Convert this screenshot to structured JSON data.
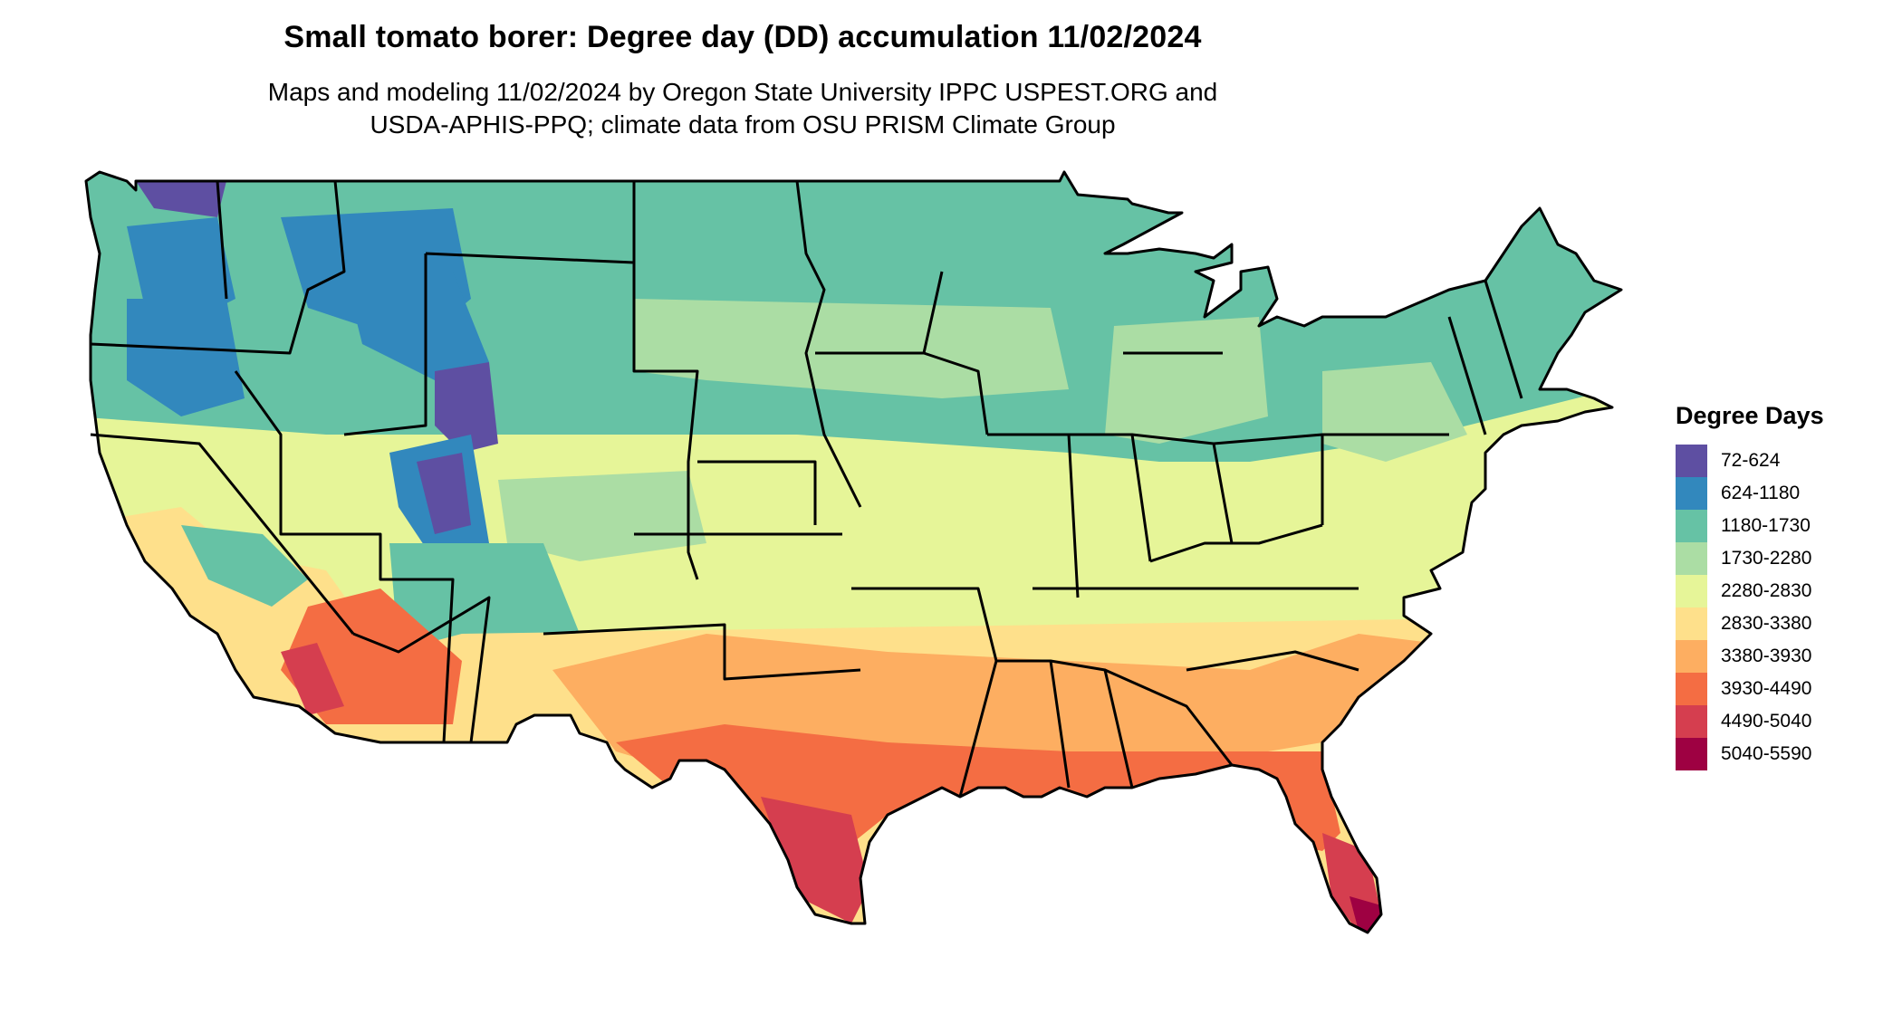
{
  "title": "Small tomato borer: Degree day (DD) accumulation 11/02/2024",
  "subtitle_line1": "Maps and modeling 11/02/2024 by Oregon State University IPPC USPEST.ORG and",
  "subtitle_line2": "USDA-APHIS-PPQ; climate data from OSU PRISM Climate Group",
  "legend": {
    "title": "Degree Days",
    "items": [
      {
        "label": "72-624",
        "color": "#5e4fa2"
      },
      {
        "label": "624-1180",
        "color": "#3288bd"
      },
      {
        "label": "1180-1730",
        "color": "#66c2a5"
      },
      {
        "label": "1730-2280",
        "color": "#abdda4"
      },
      {
        "label": "2280-2830",
        "color": "#e6f598"
      },
      {
        "label": "2830-3380",
        "color": "#fee08b"
      },
      {
        "label": "3380-3930",
        "color": "#fdae61"
      },
      {
        "label": "3930-4490",
        "color": "#f46d43"
      },
      {
        "label": "4490-5040",
        "color": "#d53e4f"
      },
      {
        "label": "5040-5590",
        "color": "#9e0142"
      }
    ]
  }
}
